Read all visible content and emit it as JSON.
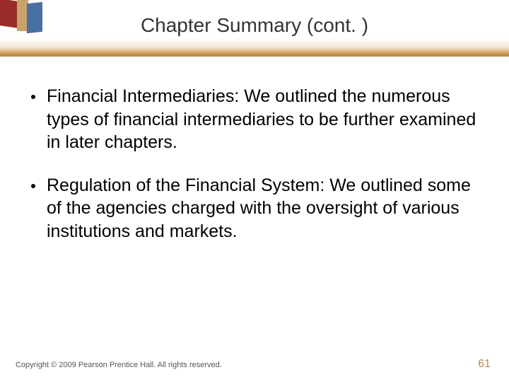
{
  "slide": {
    "title": "Chapter Summary (cont. )",
    "title_color": "#333333",
    "title_fontsize": 28,
    "background_color": "#ffffff",
    "header_gradient_bottom": "#b8894a",
    "bullets": [
      {
        "text": "Financial Intermediaries: We outlined the numerous types of financial intermediaries to be further examined in later chapters."
      },
      {
        "text": "Regulation of the Financial System: We outlined some of the agencies charged with the oversight of various institutions and markets."
      }
    ],
    "bullet_fontsize": 25,
    "bullet_color": "#000000",
    "footer": "Copyright © 2009 Pearson Prentice Hall. All rights reserved.",
    "footer_fontsize": 11,
    "footer_color": "#555555",
    "page_number": "61",
    "page_number_color": "#c28a3a",
    "corner_colors": {
      "red": "#9b2c2c",
      "tan": "#c9a36b",
      "blue": "#4a6fa5"
    }
  }
}
